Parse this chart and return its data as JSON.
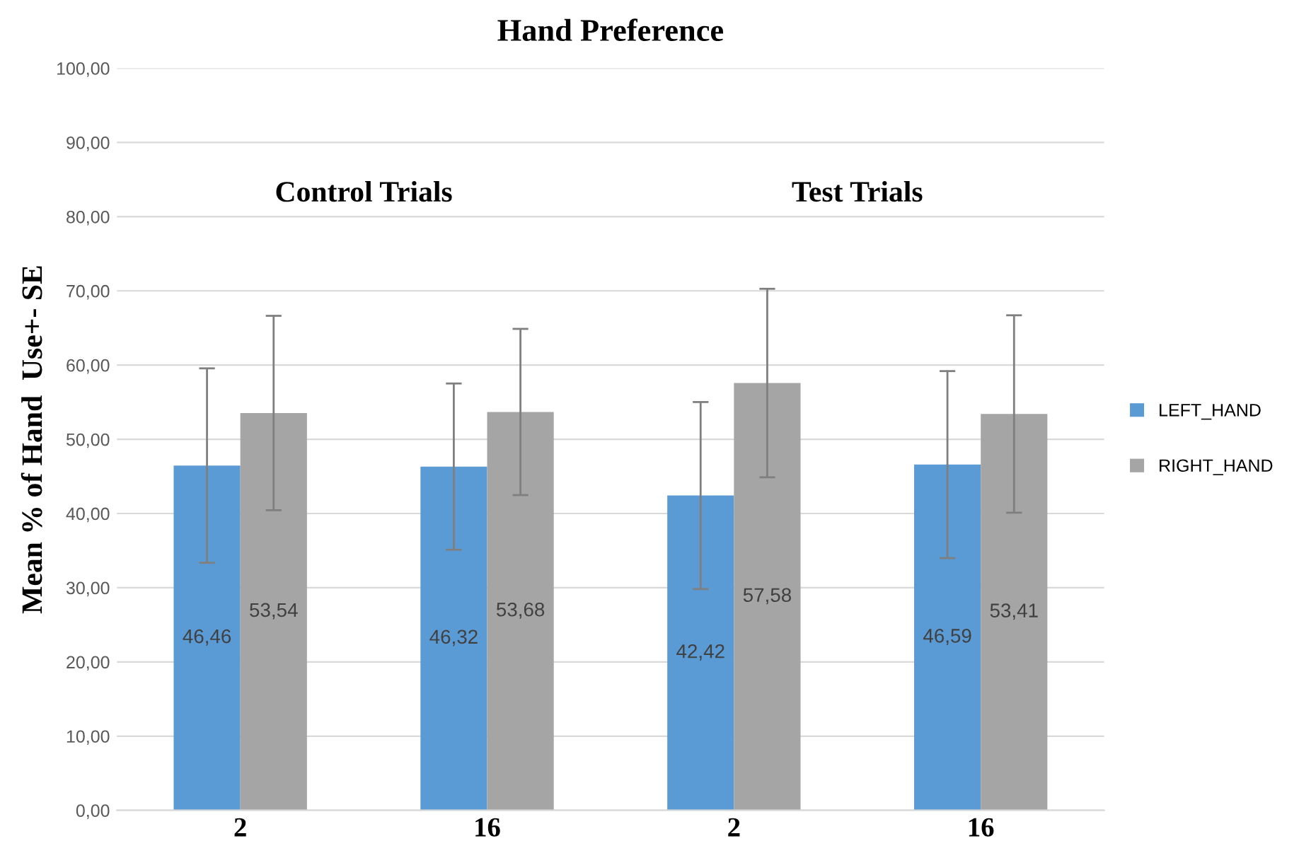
{
  "chart_data": {
    "type": "bar",
    "title": "Hand Preference",
    "ylabel": "Mean % of Hand  Use+- SE",
    "categories": [
      "2",
      "16",
      "2",
      "16"
    ],
    "series": [
      {
        "name": "LEFT_HAND",
        "color": "#5b9bd5",
        "values": [
          46.46,
          46.32,
          42.42,
          46.59
        ],
        "errors": [
          13.1,
          11.2,
          12.6,
          12.6
        ],
        "value_labels": [
          "46,46",
          "46,32",
          "42,42",
          "46,59"
        ]
      },
      {
        "name": "RIGHT_HAND",
        "color": "#a5a5a5",
        "values": [
          53.54,
          53.68,
          57.58,
          53.41
        ],
        "errors": [
          13.1,
          11.2,
          12.7,
          13.3
        ],
        "value_labels": [
          "53,54",
          "53,68",
          "57,58",
          "53,41"
        ]
      }
    ],
    "annotations": [
      "Control Trials",
      "Test Trials"
    ],
    "ylim": [
      0,
      100
    ],
    "yticks": [
      {
        "value": 0,
        "label": "0,00"
      },
      {
        "value": 10,
        "label": "10,00"
      },
      {
        "value": 20,
        "label": "20,00"
      },
      {
        "value": 30,
        "label": "30,00"
      },
      {
        "value": 40,
        "label": "40,00"
      },
      {
        "value": 50,
        "label": "50,00"
      },
      {
        "value": 60,
        "label": "60,00"
      },
      {
        "value": 70,
        "label": "70,00"
      },
      {
        "value": 80,
        "label": "80,00"
      },
      {
        "value": 90,
        "label": "90,00"
      },
      {
        "value": 100,
        "label": "100,00"
      }
    ],
    "grid": "y",
    "legend": "right"
  }
}
